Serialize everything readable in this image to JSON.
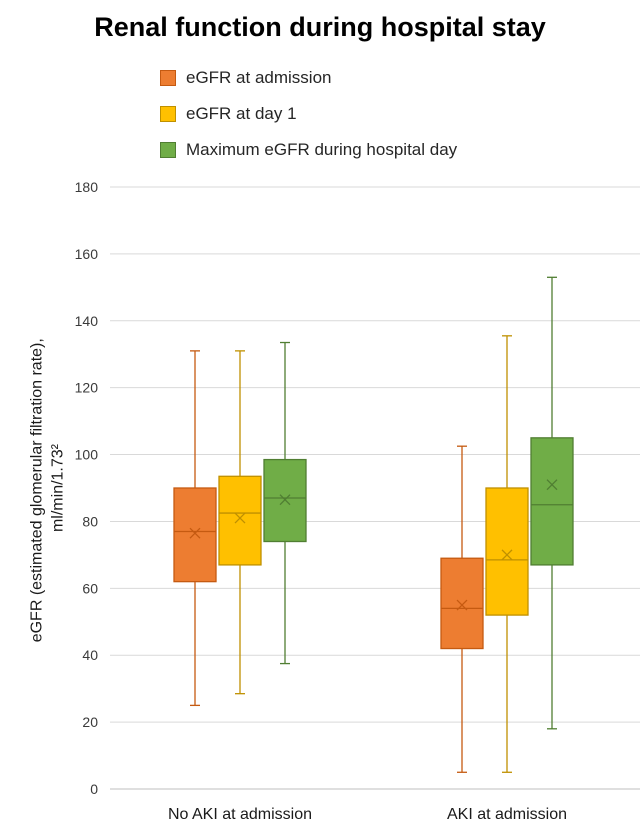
{
  "chart_data": {
    "type": "box",
    "title": "Renal function during hospital stay",
    "ylabel_lines": [
      "eGFR (estimated glomerular filtration rate),",
      "ml/min/1.73²"
    ],
    "ylim": [
      0,
      180
    ],
    "yticks": [
      0,
      20,
      40,
      60,
      80,
      100,
      120,
      140,
      160,
      180
    ],
    "categories": [
      "No AKI at admission",
      "AKI at admission"
    ],
    "grid": true,
    "legend_position": "top",
    "series": [
      {
        "name": "eGFR at admission",
        "color": "#ED7D31",
        "dark": "#C55A11",
        "boxes": [
          {
            "min": 25,
            "q1": 62,
            "median": 77,
            "q3": 90,
            "max": 131,
            "mean": 76.5
          },
          {
            "min": 5,
            "q1": 42,
            "median": 54,
            "q3": 69,
            "max": 102.5,
            "mean": 55
          }
        ]
      },
      {
        "name": "eGFR at day 1",
        "color": "#FFC000",
        "dark": "#BF9000",
        "boxes": [
          {
            "min": 28.5,
            "q1": 67,
            "median": 82.5,
            "q3": 93.5,
            "max": 131,
            "mean": 81
          },
          {
            "min": 5,
            "q1": 52,
            "median": 68.5,
            "q3": 90,
            "max": 135.5,
            "mean": 70
          }
        ]
      },
      {
        "name": "Maximum eGFR during hospital day",
        "color": "#70AD47",
        "dark": "#507E32",
        "boxes": [
          {
            "min": 37.5,
            "q1": 74,
            "median": 87,
            "q3": 98.5,
            "max": 133.5,
            "mean": 86.5
          },
          {
            "min": 18,
            "q1": 67,
            "median": 85,
            "q3": 105,
            "max": 153,
            "mean": 91
          }
        ]
      }
    ]
  }
}
